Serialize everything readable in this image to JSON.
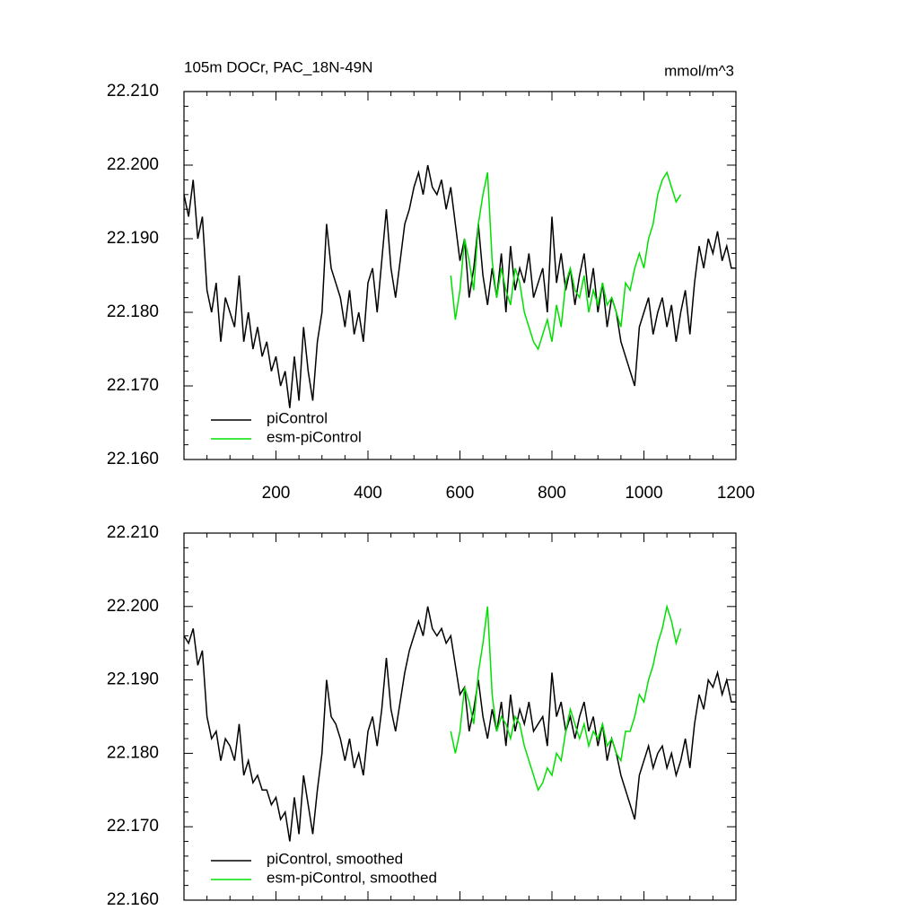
{
  "chart_data": [
    {
      "type": "line",
      "title": "105m DOCr, PAC_18N-49N",
      "units": "mmol/m^3",
      "xlim": [
        0,
        1200
      ],
      "xticks": [
        200,
        400,
        600,
        800,
        1000,
        1200
      ],
      "show_xtick_labels": true,
      "ylim": [
        22.16,
        22.21
      ],
      "yticks": [
        {
          "value": 22.16,
          "label": "22.160"
        },
        {
          "value": 22.17,
          "label": "22.170"
        },
        {
          "value": 22.18,
          "label": "22.180"
        },
        {
          "value": 22.19,
          "label": "22.190"
        },
        {
          "value": 22.2,
          "label": "22.200"
        },
        {
          "value": 22.21,
          "label": "22.210"
        }
      ],
      "legend": "lower left",
      "series": [
        {
          "name": "piControl",
          "color": "#000000",
          "x": [
            0,
            10,
            20,
            30,
            40,
            50,
            60,
            70,
            80,
            90,
            100,
            110,
            120,
            130,
            140,
            150,
            160,
            170,
            180,
            190,
            200,
            210,
            220,
            230,
            240,
            250,
            260,
            270,
            280,
            290,
            300,
            310,
            320,
            330,
            340,
            350,
            360,
            370,
            380,
            390,
            400,
            410,
            420,
            430,
            440,
            450,
            460,
            470,
            480,
            490,
            500,
            510,
            520,
            530,
            540,
            550,
            560,
            570,
            580,
            590,
            600,
            610,
            620,
            630,
            640,
            650,
            660,
            670,
            680,
            690,
            700,
            710,
            720,
            730,
            740,
            750,
            760,
            770,
            780,
            790,
            800,
            810,
            820,
            830,
            840,
            850,
            860,
            870,
            880,
            890,
            900,
            910,
            920,
            930,
            940,
            950,
            960,
            970,
            980,
            990,
            1000,
            1010,
            1020,
            1030,
            1040,
            1050,
            1060,
            1070,
            1080,
            1090,
            1100,
            1110,
            1120,
            1130,
            1140,
            1150,
            1160,
            1170,
            1180,
            1190,
            1200
          ],
          "values": [
            22.196,
            22.193,
            22.198,
            22.19,
            22.193,
            22.183,
            22.18,
            22.184,
            22.176,
            22.182,
            22.18,
            22.178,
            22.185,
            22.176,
            22.18,
            22.175,
            22.178,
            22.174,
            22.176,
            22.172,
            22.174,
            22.17,
            22.172,
            22.167,
            22.174,
            22.168,
            22.178,
            22.172,
            22.168,
            22.176,
            22.18,
            22.192,
            22.186,
            22.184,
            22.182,
            22.178,
            22.183,
            22.177,
            22.18,
            22.176,
            22.184,
            22.186,
            22.18,
            22.187,
            22.194,
            22.186,
            22.182,
            22.187,
            22.192,
            22.194,
            22.197,
            22.199,
            22.196,
            22.2,
            22.197,
            22.196,
            22.198,
            22.194,
            22.197,
            22.192,
            22.187,
            22.19,
            22.182,
            22.186,
            22.192,
            22.185,
            22.181,
            22.186,
            22.182,
            22.188,
            22.18,
            22.189,
            22.183,
            22.186,
            22.184,
            22.188,
            22.182,
            22.184,
            22.186,
            22.18,
            22.193,
            22.184,
            22.188,
            22.183,
            22.186,
            22.181,
            22.185,
            22.188,
            22.182,
            22.186,
            22.18,
            22.184,
            22.178,
            22.182,
            22.18,
            22.176,
            22.174,
            22.172,
            22.17,
            22.178,
            22.18,
            22.182,
            22.177,
            22.18,
            22.182,
            22.178,
            22.181,
            22.176,
            22.18,
            22.183,
            22.177,
            22.184,
            22.189,
            22.186,
            22.19,
            22.188,
            22.191,
            22.187,
            22.189,
            22.186,
            22.186
          ]
        },
        {
          "name": "esm-piControl",
          "color": "#00e000",
          "x": [
            580,
            590,
            600,
            610,
            620,
            630,
            640,
            650,
            660,
            670,
            680,
            690,
            700,
            710,
            720,
            730,
            740,
            750,
            760,
            770,
            780,
            790,
            800,
            810,
            820,
            830,
            840,
            850,
            860,
            870,
            880,
            890,
            900,
            910,
            920,
            930,
            940,
            950,
            960,
            970,
            980,
            990,
            1000,
            1010,
            1020,
            1030,
            1040,
            1050,
            1060,
            1070,
            1080
          ],
          "values": [
            22.185,
            22.179,
            22.183,
            22.19,
            22.187,
            22.183,
            22.192,
            22.196,
            22.199,
            22.187,
            22.182,
            22.186,
            22.183,
            22.181,
            22.186,
            22.184,
            22.18,
            22.178,
            22.176,
            22.175,
            22.177,
            22.179,
            22.176,
            22.181,
            22.178,
            22.184,
            22.186,
            22.183,
            22.182,
            22.185,
            22.18,
            22.183,
            22.181,
            22.184,
            22.181,
            22.182,
            22.18,
            22.178,
            22.184,
            22.183,
            22.186,
            22.188,
            22.186,
            22.19,
            22.192,
            22.196,
            22.198,
            22.199,
            22.197,
            22.195,
            22.196
          ]
        }
      ]
    },
    {
      "type": "line",
      "xlim": [
        0,
        1200
      ],
      "xticks": [
        200,
        400,
        600,
        800,
        1000,
        1200
      ],
      "show_xtick_labels": false,
      "ylim": [
        22.16,
        22.21
      ],
      "yticks": [
        {
          "value": 22.16,
          "label": "22.160"
        },
        {
          "value": 22.17,
          "label": "22.170"
        },
        {
          "value": 22.18,
          "label": "22.180"
        },
        {
          "value": 22.19,
          "label": "22.190"
        },
        {
          "value": 22.2,
          "label": "22.200"
        },
        {
          "value": 22.21,
          "label": "22.210"
        }
      ],
      "legend": "lower left",
      "series": [
        {
          "name": "piControl, smoothed",
          "color": "#000000",
          "x": [
            0,
            10,
            20,
            30,
            40,
            50,
            60,
            70,
            80,
            90,
            100,
            110,
            120,
            130,
            140,
            150,
            160,
            170,
            180,
            190,
            200,
            210,
            220,
            230,
            240,
            250,
            260,
            270,
            280,
            290,
            300,
            310,
            320,
            330,
            340,
            350,
            360,
            370,
            380,
            390,
            400,
            410,
            420,
            430,
            440,
            450,
            460,
            470,
            480,
            490,
            500,
            510,
            520,
            530,
            540,
            550,
            560,
            570,
            580,
            590,
            600,
            610,
            620,
            630,
            640,
            650,
            660,
            670,
            680,
            690,
            700,
            710,
            720,
            730,
            740,
            750,
            760,
            770,
            780,
            790,
            800,
            810,
            820,
            830,
            840,
            850,
            860,
            870,
            880,
            890,
            900,
            910,
            920,
            930,
            940,
            950,
            960,
            970,
            980,
            990,
            1000,
            1010,
            1020,
            1030,
            1040,
            1050,
            1060,
            1070,
            1080,
            1090,
            1100,
            1110,
            1120,
            1130,
            1140,
            1150,
            1160,
            1170,
            1180,
            1190,
            1200
          ],
          "values": [
            22.196,
            22.195,
            22.197,
            22.192,
            22.194,
            22.185,
            22.182,
            22.183,
            22.179,
            22.182,
            22.181,
            22.179,
            22.184,
            22.177,
            22.179,
            22.176,
            22.177,
            22.175,
            22.175,
            22.173,
            22.174,
            22.171,
            22.172,
            22.168,
            22.174,
            22.169,
            22.177,
            22.173,
            22.169,
            22.175,
            22.18,
            22.19,
            22.185,
            22.184,
            22.182,
            22.179,
            22.182,
            22.178,
            22.18,
            22.177,
            22.183,
            22.185,
            22.181,
            22.186,
            22.193,
            22.186,
            22.183,
            22.187,
            22.191,
            22.194,
            22.196,
            22.198,
            22.196,
            22.2,
            22.197,
            22.196,
            22.197,
            22.195,
            22.196,
            22.192,
            22.188,
            22.189,
            22.183,
            22.186,
            22.19,
            22.185,
            22.182,
            22.186,
            22.183,
            22.187,
            22.181,
            22.188,
            22.183,
            22.186,
            22.184,
            22.187,
            22.183,
            22.184,
            22.185,
            22.181,
            22.191,
            22.185,
            22.187,
            22.183,
            22.185,
            22.182,
            22.185,
            22.187,
            22.183,
            22.185,
            22.181,
            22.184,
            22.179,
            22.182,
            22.18,
            22.177,
            22.175,
            22.173,
            22.171,
            22.177,
            22.179,
            22.181,
            22.178,
            22.18,
            22.181,
            22.178,
            22.18,
            22.177,
            22.179,
            22.182,
            22.178,
            22.184,
            22.188,
            22.186,
            22.19,
            22.189,
            22.191,
            22.188,
            22.19,
            22.187,
            22.187
          ]
        },
        {
          "name": "esm-piControl, smoothed",
          "color": "#00e000",
          "x": [
            580,
            590,
            600,
            610,
            620,
            630,
            640,
            650,
            660,
            670,
            680,
            690,
            700,
            710,
            720,
            730,
            740,
            750,
            760,
            770,
            780,
            790,
            800,
            810,
            820,
            830,
            840,
            850,
            860,
            870,
            880,
            890,
            900,
            910,
            920,
            930,
            940,
            950,
            960,
            970,
            980,
            990,
            1000,
            1010,
            1020,
            1030,
            1040,
            1050,
            1060,
            1070,
            1080
          ],
          "values": [
            22.183,
            22.18,
            22.183,
            22.189,
            22.187,
            22.184,
            22.191,
            22.195,
            22.2,
            22.188,
            22.183,
            22.185,
            22.184,
            22.182,
            22.185,
            22.184,
            22.181,
            22.179,
            22.177,
            22.175,
            22.176,
            22.178,
            22.177,
            22.18,
            22.179,
            22.183,
            22.186,
            22.184,
            22.182,
            22.184,
            22.181,
            22.183,
            22.182,
            22.184,
            22.181,
            22.182,
            22.18,
            22.179,
            22.183,
            22.183,
            22.185,
            22.188,
            22.187,
            22.19,
            22.192,
            22.195,
            22.197,
            22.2,
            22.198,
            22.195,
            22.197
          ]
        }
      ]
    }
  ]
}
